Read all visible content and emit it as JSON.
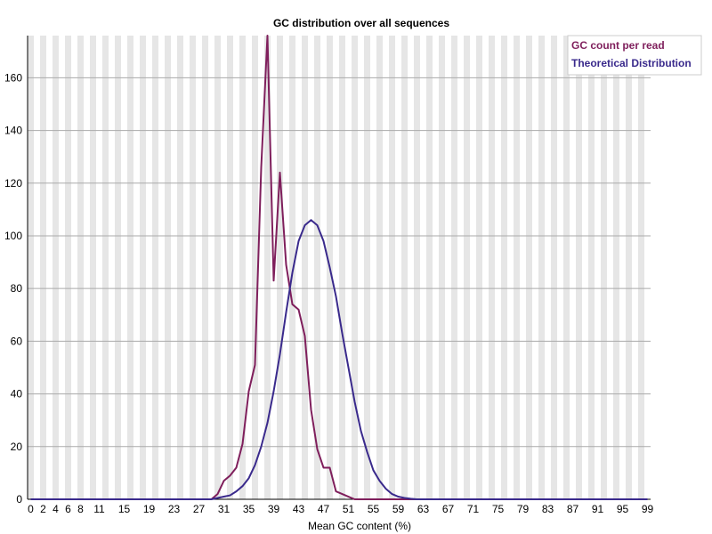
{
  "chart_data": {
    "type": "line",
    "title": "GC distribution over all sequences",
    "xlabel": "Mean GC content (%)",
    "ylabel": "",
    "xlim": [
      0,
      100
    ],
    "ylim": [
      0,
      176
    ],
    "y_ticks": [
      "0",
      "20",
      "40",
      "60",
      "80",
      "100",
      "120",
      "140",
      "160"
    ],
    "x_tick_labels": [
      "0",
      "2",
      "4",
      "6",
      "8",
      "11",
      "15",
      "19",
      "23",
      "27",
      "31",
      "35",
      "39",
      "43",
      "47",
      "51",
      "55",
      "59",
      "63",
      "67",
      "71",
      "75",
      "79",
      "83",
      "87",
      "91",
      "95",
      "99"
    ],
    "grid": true,
    "legend_position": "top-right",
    "series": [
      {
        "name": "GC count per read",
        "color": "#7f1f5c",
        "x": [
          0,
          1,
          2,
          3,
          4,
          5,
          6,
          7,
          8,
          9,
          10,
          11,
          12,
          13,
          14,
          15,
          16,
          17,
          18,
          19,
          20,
          21,
          22,
          23,
          24,
          25,
          26,
          27,
          28,
          29,
          30,
          31,
          32,
          33,
          34,
          35,
          36,
          37,
          38,
          39,
          40,
          41,
          42,
          43,
          44,
          45,
          46,
          47,
          48,
          49,
          50,
          51,
          52,
          53,
          54,
          55,
          56,
          57,
          58,
          59,
          60,
          61,
          62,
          63,
          64,
          65,
          66,
          67,
          68,
          69,
          70,
          71,
          72,
          73,
          74,
          75,
          76,
          77,
          78,
          79,
          80,
          81,
          82,
          83,
          84,
          85,
          86,
          87,
          88,
          89,
          90,
          91,
          92,
          93,
          94,
          95,
          96,
          97,
          98,
          99
        ],
        "values": [
          0,
          0,
          0,
          0,
          0,
          0,
          0,
          0,
          0,
          0,
          0,
          0,
          0,
          0,
          0,
          0,
          0,
          0,
          0,
          0,
          0,
          0,
          0,
          0,
          0,
          0,
          0,
          0,
          0,
          0,
          2,
          7,
          9,
          12,
          21,
          41,
          51,
          126,
          176,
          83,
          124,
          89,
          74,
          72,
          62,
          34,
          19,
          12,
          12,
          3,
          2,
          1,
          0,
          0,
          0,
          0,
          0,
          0,
          0,
          0,
          0,
          0,
          0,
          0,
          0,
          0,
          0,
          0,
          0,
          0,
          0,
          0,
          0,
          0,
          0,
          0,
          0,
          0,
          0,
          0,
          0,
          0,
          0,
          0,
          0,
          0,
          0,
          0,
          0,
          0,
          0,
          0,
          0,
          0,
          0,
          0,
          0,
          0,
          0,
          0
        ]
      },
      {
        "name": "Theoretical Distribution",
        "color": "#3a2a8c",
        "x": [
          0,
          1,
          2,
          3,
          4,
          5,
          6,
          7,
          8,
          9,
          10,
          11,
          12,
          13,
          14,
          15,
          16,
          17,
          18,
          19,
          20,
          21,
          22,
          23,
          24,
          25,
          26,
          27,
          28,
          29,
          30,
          31,
          32,
          33,
          34,
          35,
          36,
          37,
          38,
          39,
          40,
          41,
          42,
          43,
          44,
          45,
          46,
          47,
          48,
          49,
          50,
          51,
          52,
          53,
          54,
          55,
          56,
          57,
          58,
          59,
          60,
          61,
          62,
          63,
          64,
          65,
          66,
          67,
          68,
          69,
          70,
          71,
          72,
          73,
          74,
          75,
          76,
          77,
          78,
          79,
          80,
          81,
          82,
          83,
          84,
          85,
          86,
          87,
          88,
          89,
          90,
          91,
          92,
          93,
          94,
          95,
          96,
          97,
          98,
          99
        ],
        "values": [
          0,
          0,
          0,
          0,
          0,
          0,
          0,
          0,
          0,
          0,
          0,
          0,
          0,
          0,
          0,
          0,
          0,
          0,
          0,
          0,
          0,
          0,
          0,
          0,
          0,
          0,
          0,
          0,
          0,
          0,
          0.5,
          1,
          1.5,
          3,
          5,
          8,
          13,
          20,
          29,
          41,
          55,
          71,
          86,
          98,
          104,
          106,
          104,
          98,
          88,
          77,
          63,
          50,
          37,
          26,
          18,
          11,
          7,
          4,
          2,
          1,
          0.5,
          0.2,
          0,
          0,
          0,
          0,
          0,
          0,
          0,
          0,
          0,
          0,
          0,
          0,
          0,
          0,
          0,
          0,
          0,
          0,
          0,
          0,
          0,
          0,
          0,
          0,
          0,
          0,
          0,
          0,
          0,
          0,
          0,
          0,
          0,
          0,
          0,
          0,
          0,
          0
        ]
      }
    ]
  }
}
